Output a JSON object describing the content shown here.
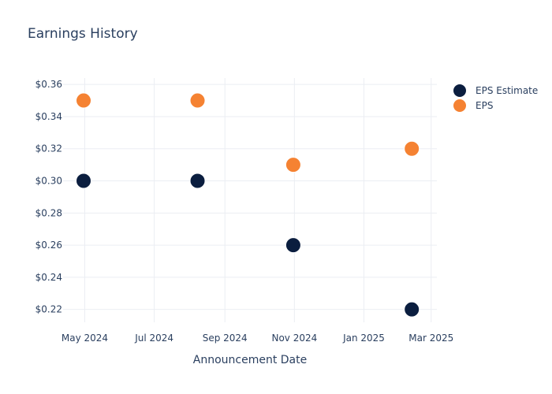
{
  "title": "Earnings History",
  "legend": {
    "items": [
      {
        "label": "EPS Estimate",
        "color": "#0b1e3f"
      },
      {
        "label": "EPS",
        "color": "#f58232"
      }
    ]
  },
  "chart_data": {
    "type": "scatter",
    "title": "Earnings History",
    "xlabel": "Announcement Date",
    "ylabel": "",
    "x_tick_labels": [
      "May 2024",
      "Jul 2024",
      "Sep 2024",
      "Nov 2024",
      "Jan 2025",
      "Mar 2025"
    ],
    "x_tick_dates": [
      "2024-05-01",
      "2024-07-01",
      "2024-09-01",
      "2024-11-01",
      "2025-01-01",
      "2025-03-01"
    ],
    "y_tick_labels": [
      "$0.22",
      "$0.24",
      "$0.26",
      "$0.28",
      "$0.30",
      "$0.32",
      "$0.34",
      "$0.36"
    ],
    "y_tick_values": [
      0.22,
      0.24,
      0.26,
      0.28,
      0.3,
      0.32,
      0.34,
      0.36
    ],
    "xlim": [
      "2024-04-12",
      "2025-03-06"
    ],
    "ylim": [
      0.212,
      0.364
    ],
    "grid": true,
    "legend_position": "top-right",
    "series": [
      {
        "name": "EPS Estimate",
        "color": "#0b1e3f",
        "points": [
          {
            "x": "2024-04-30",
            "y": 0.3
          },
          {
            "x": "2024-08-08",
            "y": 0.3
          },
          {
            "x": "2024-10-31",
            "y": 0.26
          },
          {
            "x": "2025-02-12",
            "y": 0.22
          }
        ]
      },
      {
        "name": "EPS",
        "color": "#f58232",
        "points": [
          {
            "x": "2024-04-30",
            "y": 0.35
          },
          {
            "x": "2024-08-08",
            "y": 0.35
          },
          {
            "x": "2024-10-31",
            "y": 0.31
          },
          {
            "x": "2025-02-12",
            "y": 0.32
          }
        ]
      }
    ]
  }
}
